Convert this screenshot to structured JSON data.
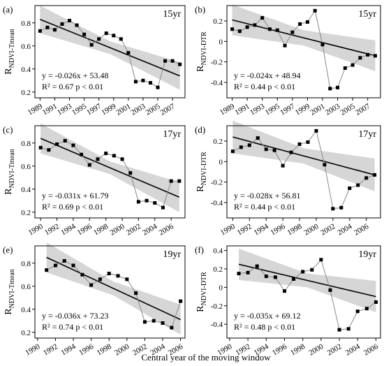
{
  "xlabel": "Central year of the moving window",
  "chart_data": [
    {
      "type": "line",
      "panel": "(a)",
      "period": "15yr",
      "ylabel_main": "R",
      "ylabel_sub": "NDVI-Tmean",
      "equation": "y = -0.026x + 53.48",
      "stats": "R² = 0.67  p < 0.01",
      "x": [
        1989,
        1990,
        1991,
        1992,
        1993,
        1994,
        1995,
        1996,
        1997,
        1998,
        1999,
        2000,
        2001,
        2002,
        2003,
        2004,
        2005,
        2006,
        2007,
        2008
      ],
      "values": [
        0.73,
        0.76,
        0.74,
        0.79,
        0.82,
        0.78,
        0.7,
        0.61,
        0.66,
        0.71,
        0.69,
        0.66,
        0.54,
        0.29,
        0.3,
        0.28,
        0.24,
        0.47,
        0.47,
        0.44
      ],
      "color": "#888888",
      "marker_color": "#000000",
      "fit": {
        "x": [
          1989,
          2008
        ],
        "y": [
          0.83,
          0.34
        ]
      },
      "band": {
        "x": [
          1989,
          1998.5,
          2008
        ],
        "lower": [
          0.71,
          0.53,
          0.22
        ],
        "upper": [
          0.95,
          0.64,
          0.46
        ]
      },
      "xlim": [
        1988.3,
        2008.7
      ],
      "ylim": [
        0.15,
        0.95
      ],
      "xticks": [
        1989,
        1991,
        1993,
        1995,
        1997,
        1999,
        2001,
        2003,
        2005,
        2007
      ],
      "yticks": [
        0.2,
        0.4,
        0.6,
        0.8
      ]
    },
    {
      "type": "line",
      "panel": "(b)",
      "period": "15yr",
      "ylabel_main": "R",
      "ylabel_sub": "NDVI-DTR",
      "equation": "y = -0.024x + 48.94",
      "stats": "R² = 0.44  p < 0.01",
      "x": [
        1989,
        1990,
        1991,
        1992,
        1993,
        1994,
        1995,
        1996,
        1997,
        1998,
        1999,
        2000,
        2001,
        2002,
        2003,
        2004,
        2005,
        2006,
        2007,
        2008
      ],
      "values": [
        0.12,
        0.1,
        0.14,
        0.16,
        0.23,
        0.12,
        0.11,
        -0.04,
        0.09,
        0.17,
        0.19,
        0.3,
        -0.03,
        -0.46,
        -0.45,
        -0.26,
        -0.23,
        -0.16,
        -0.13,
        -0.14
      ],
      "color": "#888888",
      "marker_color": "#000000",
      "fit": {
        "x": [
          1989,
          2008
        ],
        "y": [
          0.21,
          -0.14
        ]
      },
      "band": {
        "x": [
          1989,
          1998.5,
          2008
        ],
        "lower": [
          0.06,
          -0.04,
          -0.29
        ],
        "upper": [
          0.36,
          0.11,
          0.01
        ]
      },
      "xlim": [
        1988.3,
        2008.7
      ],
      "ylim": [
        -0.55,
        0.35
      ],
      "xticks": [
        1989,
        1991,
        1993,
        1995,
        1997,
        1999,
        2001,
        2003,
        2005,
        2007
      ],
      "yticks": [
        -0.4,
        -0.2,
        0,
        0.2
      ]
    },
    {
      "type": "line",
      "panel": "(c)",
      "period": "17yr",
      "ylabel_main": "R",
      "ylabel_sub": "NDVI-Tmean",
      "equation": "y = -0.031x + 61.79",
      "stats": "R² = 0.69  p < 0.01",
      "x": [
        1990,
        1991,
        1992,
        1993,
        1994,
        1995,
        1996,
        1997,
        1998,
        1999,
        2000,
        2001,
        2002,
        2003,
        2004,
        2005,
        2006,
        2007
      ],
      "values": [
        0.76,
        0.74,
        0.79,
        0.82,
        0.78,
        0.7,
        0.61,
        0.66,
        0.71,
        0.69,
        0.66,
        0.54,
        0.29,
        0.3,
        0.28,
        0.24,
        0.47,
        0.47
      ],
      "color": "#888888",
      "marker_color": "#000000",
      "fit": {
        "x": [
          1990,
          2007
        ],
        "y": [
          0.84,
          0.33
        ]
      },
      "band": {
        "x": [
          1990,
          1998.5,
          2007
        ],
        "lower": [
          0.71,
          0.53,
          0.2
        ],
        "upper": [
          0.97,
          0.64,
          0.46
        ]
      },
      "xlim": [
        1989.3,
        2007.7
      ],
      "ylim": [
        0.15,
        0.95
      ],
      "xticks": [
        1990,
        1992,
        1994,
        1996,
        1998,
        2000,
        2002,
        2004,
        2006
      ],
      "yticks": [
        0.2,
        0.4,
        0.6,
        0.8
      ]
    },
    {
      "type": "line",
      "panel": "(d)",
      "period": "17yr",
      "ylabel_main": "R",
      "ylabel_sub": "NDVI-DTR",
      "equation": "y = -0.028x + 56.81",
      "stats": "R² = 0.44  p < 0.01",
      "x": [
        1990,
        1991,
        1992,
        1993,
        1994,
        1995,
        1996,
        1997,
        1998,
        1999,
        2000,
        2001,
        2002,
        2003,
        2004,
        2005,
        2006,
        2007
      ],
      "values": [
        0.1,
        0.14,
        0.16,
        0.23,
        0.12,
        0.11,
        -0.04,
        0.09,
        0.17,
        0.19,
        0.3,
        -0.03,
        -0.46,
        -0.45,
        -0.26,
        -0.23,
        -0.16,
        -0.13
      ],
      "color": "#888888",
      "marker_color": "#000000",
      "fit": {
        "x": [
          1990,
          2007
        ],
        "y": [
          0.24,
          -0.13
        ]
      },
      "band": {
        "x": [
          1990,
          1998.5,
          2007
        ],
        "lower": [
          0.08,
          -0.02,
          -0.29
        ],
        "upper": [
          0.4,
          0.13,
          0.03
        ]
      },
      "xlim": [
        1989.3,
        2007.7
      ],
      "ylim": [
        -0.55,
        0.35
      ],
      "xticks": [
        1990,
        1992,
        1994,
        1996,
        1998,
        2000,
        2002,
        2004,
        2006
      ],
      "yticks": [
        -0.4,
        -0.2,
        0,
        0.2
      ]
    },
    {
      "type": "line",
      "panel": "(e)",
      "period": "19yr",
      "ylabel_main": "R",
      "ylabel_sub": "NDVI-Tmean",
      "equation": "y = -0.036x + 73.23",
      "stats": "R² = 0.74  p < 0.01",
      "x": [
        1991,
        1992,
        1993,
        1994,
        1995,
        1996,
        1997,
        1998,
        1999,
        2000,
        2001,
        2002,
        2003,
        2004,
        2005,
        2006
      ],
      "values": [
        0.74,
        0.78,
        0.82,
        0.78,
        0.7,
        0.61,
        0.66,
        0.71,
        0.69,
        0.66,
        0.54,
        0.29,
        0.3,
        0.28,
        0.24,
        0.47
      ],
      "color": "#888888",
      "marker_color": "#000000",
      "fit": {
        "x": [
          1991,
          2006
        ],
        "y": [
          0.85,
          0.31
        ]
      },
      "band": {
        "x": [
          1991,
          1998.5,
          2006
        ],
        "lower": [
          0.72,
          0.52,
          0.18
        ],
        "upper": [
          0.98,
          0.64,
          0.44
        ]
      },
      "xlim": [
        1989.7,
        2006.5
      ],
      "ylim": [
        0.15,
        0.95
      ],
      "xticks": [
        1990,
        1992,
        1994,
        1996,
        1998,
        2000,
        2002,
        2004,
        2006
      ],
      "yticks": [
        0.2,
        0.4,
        0.6,
        0.8
      ]
    },
    {
      "type": "line",
      "panel": "(f)",
      "period": "19yr",
      "ylabel_main": "R",
      "ylabel_sub": "NDVI-DTR",
      "equation": "y = -0.035x + 69.12",
      "stats": "R² = 0.48  p < 0.01",
      "x": [
        1991,
        1992,
        1993,
        1994,
        1995,
        1996,
        1997,
        1998,
        1999,
        2000,
        2001,
        2002,
        2003,
        2004,
        2005,
        2006
      ],
      "values": [
        0.15,
        0.16,
        0.23,
        0.12,
        0.11,
        -0.04,
        0.09,
        0.17,
        0.19,
        0.3,
        -0.03,
        -0.46,
        -0.45,
        -0.26,
        -0.23,
        -0.16
      ],
      "color": "#888888",
      "marker_color": "#000000",
      "fit": {
        "x": [
          1991,
          2006
        ],
        "y": [
          0.25,
          -0.1
        ]
      },
      "band": {
        "x": [
          1991,
          1998.5,
          2006
        ],
        "lower": [
          0.08,
          0.0,
          -0.27
        ],
        "upper": [
          0.42,
          0.15,
          0.07
        ]
      },
      "xlim": [
        1989.7,
        2006.5
      ],
      "ylim": [
        -0.55,
        0.45
      ],
      "xticks": [
        1990,
        1992,
        1994,
        1996,
        1998,
        2000,
        2002,
        2004,
        2006
      ],
      "yticks": [
        -0.4,
        -0.2,
        0,
        0.2,
        0.4
      ]
    }
  ]
}
